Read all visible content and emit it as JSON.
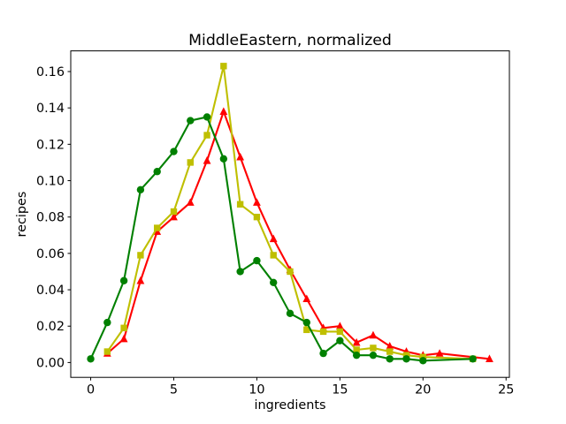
{
  "chart_data": {
    "type": "line",
    "title": "MiddleEastern, normalized",
    "xlabel": "ingredients",
    "ylabel": "recipes",
    "xlim": [
      -1.2,
      25.2
    ],
    "ylim": [
      -0.00816,
      0.17136
    ],
    "x_ticks": [
      0,
      5,
      10,
      15,
      20,
      25
    ],
    "y_ticks": [
      0.0,
      0.02,
      0.04,
      0.06,
      0.08,
      0.1,
      0.12,
      0.14,
      0.16
    ],
    "y_tick_labels": [
      "0.00",
      "0.02",
      "0.04",
      "0.06",
      "0.08",
      "0.10",
      "0.12",
      "0.14",
      "0.16"
    ],
    "grid": false,
    "legend": "none",
    "background_color": "#ffffff",
    "series": [
      {
        "name": "red-triangle-series",
        "color": "#ff0000",
        "marker": "triangle",
        "points": [
          [
            1,
            0.005
          ],
          [
            2,
            0.013
          ],
          [
            3,
            0.045
          ],
          [
            4,
            0.072
          ],
          [
            5,
            0.08
          ],
          [
            6,
            0.088
          ],
          [
            7,
            0.111
          ],
          [
            8,
            0.138
          ],
          [
            9,
            0.113
          ],
          [
            10,
            0.088
          ],
          [
            11,
            0.068
          ],
          [
            12,
            0.051
          ],
          [
            13,
            0.035
          ],
          [
            14,
            0.019
          ],
          [
            15,
            0.02
          ],
          [
            16,
            0.011
          ],
          [
            17,
            0.015
          ],
          [
            18,
            0.009
          ],
          [
            19,
            0.006
          ],
          [
            20,
            0.004
          ],
          [
            21,
            0.005
          ],
          [
            24,
            0.002
          ]
        ]
      },
      {
        "name": "yellow-square-series",
        "color": "#bfbf00",
        "marker": "square",
        "points": [
          [
            1,
            0.006
          ],
          [
            2,
            0.019
          ],
          [
            3,
            0.059
          ],
          [
            4,
            0.074
          ],
          [
            5,
            0.083
          ],
          [
            6,
            0.11
          ],
          [
            7,
            0.125
          ],
          [
            8,
            0.163
          ],
          [
            9,
            0.087
          ],
          [
            10,
            0.08
          ],
          [
            11,
            0.059
          ],
          [
            12,
            0.05
          ],
          [
            13,
            0.018
          ],
          [
            14,
            0.017
          ],
          [
            15,
            0.017
          ],
          [
            16,
            0.007
          ],
          [
            17,
            0.008
          ],
          [
            18,
            0.006
          ],
          [
            19,
            0.004
          ],
          [
            20,
            0.003
          ],
          [
            23,
            0.002
          ]
        ]
      },
      {
        "name": "green-circle-series",
        "color": "#008000",
        "marker": "circle",
        "points": [
          [
            0,
            0.002
          ],
          [
            1,
            0.022
          ],
          [
            2,
            0.045
          ],
          [
            3,
            0.095
          ],
          [
            4,
            0.105
          ],
          [
            5,
            0.116
          ],
          [
            6,
            0.133
          ],
          [
            7,
            0.135
          ],
          [
            8,
            0.112
          ],
          [
            9,
            0.05
          ],
          [
            10,
            0.056
          ],
          [
            11,
            0.044
          ],
          [
            12,
            0.027
          ],
          [
            13,
            0.022
          ],
          [
            14,
            0.005
          ],
          [
            15,
            0.012
          ],
          [
            16,
            0.004
          ],
          [
            17,
            0.004
          ],
          [
            18,
            0.002
          ],
          [
            19,
            0.002
          ],
          [
            20,
            0.001
          ],
          [
            23,
            0.002
          ]
        ]
      }
    ]
  }
}
